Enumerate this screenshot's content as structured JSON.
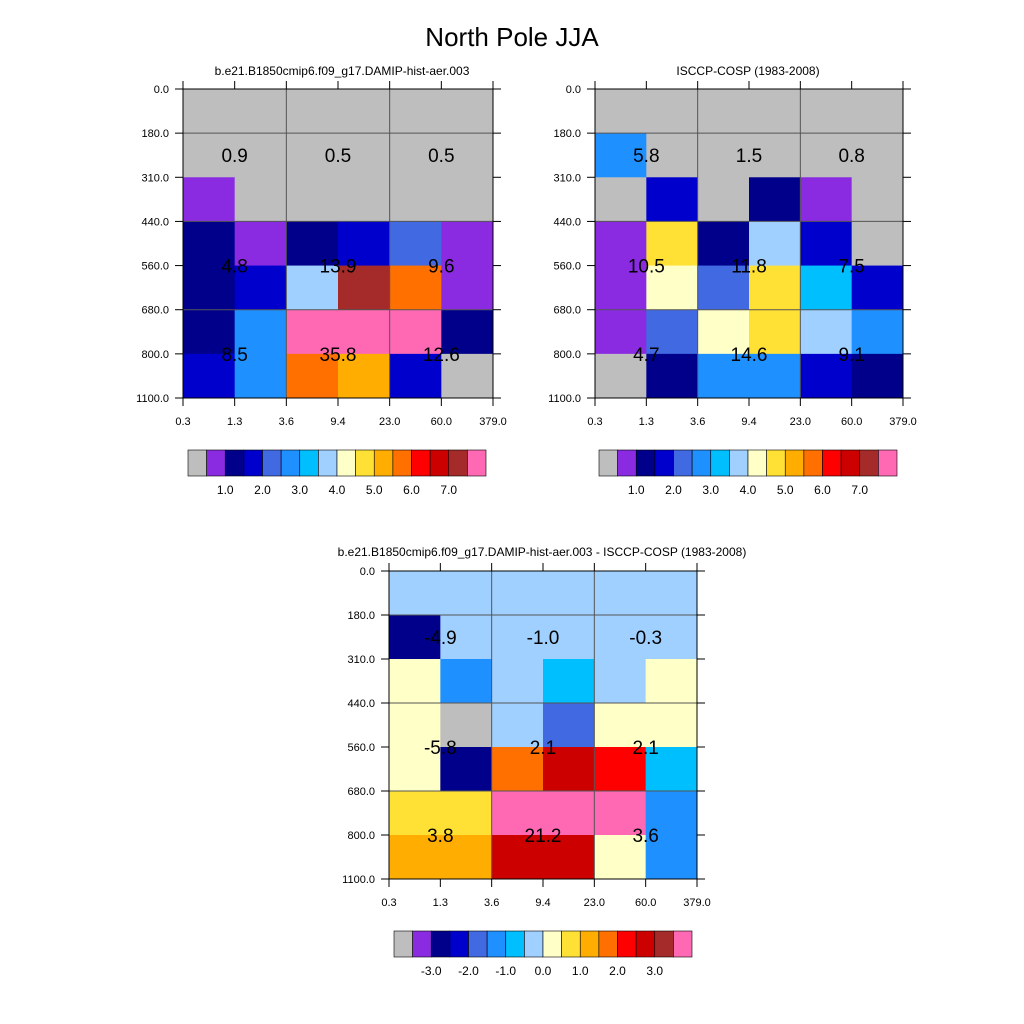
{
  "figure": {
    "title": "North Pole JJA",
    "x_tick_labels": [
      "0.3",
      "1.3",
      "3.6",
      "9.4",
      "23.0",
      "60.0",
      "379.0"
    ],
    "y_tick_labels": [
      "0.0",
      "180.0",
      "310.0",
      "440.0",
      "560.0",
      "680.0",
      "800.0",
      "1100.0"
    ]
  },
  "palette": [
    "#bebebe",
    "#8a2be2",
    "#00008b",
    "#0000cd",
    "#4169e1",
    "#1e90ff",
    "#00bfff",
    "#a0d0ff",
    "#ffffc8",
    "#ffe135",
    "#ffad00",
    "#ff7000",
    "#ff0000",
    "#cd0000",
    "#a52a2a",
    "#ff69b4"
  ],
  "chart_data": [
    {
      "type": "heatmap",
      "title": "b.e21.B1850cmip6.f09_g17.DAMIP-hist-aer.003",
      "x_bins": [
        "0.3",
        "1.3",
        "3.6",
        "9.4",
        "23.0",
        "60.0",
        "379.0"
      ],
      "y_bins": [
        "0.0",
        "180.0",
        "310.0",
        "440.0",
        "560.0",
        "680.0",
        "800.0",
        "1100.0"
      ],
      "cell_color_index": [
        [
          0,
          0,
          0,
          0,
          0,
          0
        ],
        [
          0,
          0,
          0,
          0,
          0,
          0
        ],
        [
          1,
          0,
          0,
          0,
          0,
          0
        ],
        [
          2,
          1,
          2,
          3,
          4,
          1
        ],
        [
          2,
          3,
          7,
          14,
          11,
          1
        ],
        [
          2,
          5,
          15,
          15,
          15,
          2
        ],
        [
          3,
          5,
          11,
          10,
          3,
          0
        ]
      ],
      "group_labels": [
        "0.9",
        "0.5",
        "0.5",
        "4.8",
        "13.9",
        "9.6",
        "8.5",
        "35.8",
        "12.6"
      ],
      "colorbar": {
        "labels": [
          "1.0",
          "2.0",
          "3.0",
          "4.0",
          "5.0",
          "6.0",
          "7.0"
        ]
      }
    },
    {
      "type": "heatmap",
      "title": "ISCCP-COSP (1983-2008)",
      "x_bins": [
        "0.3",
        "1.3",
        "3.6",
        "9.4",
        "23.0",
        "60.0",
        "379.0"
      ],
      "y_bins": [
        "0.0",
        "180.0",
        "310.0",
        "440.0",
        "560.0",
        "680.0",
        "800.0",
        "1100.0"
      ],
      "cell_color_index": [
        [
          0,
          0,
          0,
          0,
          0,
          0
        ],
        [
          5,
          0,
          0,
          0,
          0,
          0
        ],
        [
          0,
          3,
          0,
          2,
          1,
          0
        ],
        [
          1,
          9,
          2,
          7,
          3,
          0
        ],
        [
          1,
          8,
          4,
          9,
          6,
          3
        ],
        [
          1,
          4,
          8,
          9,
          7,
          5
        ],
        [
          0,
          2,
          5,
          5,
          3,
          2
        ]
      ],
      "group_labels": [
        "5.8",
        "1.5",
        "0.8",
        "10.5",
        "11.8",
        "7.5",
        "4.7",
        "14.6",
        "9.1"
      ],
      "colorbar": {
        "labels": [
          "1.0",
          "2.0",
          "3.0",
          "4.0",
          "5.0",
          "6.0",
          "7.0"
        ]
      }
    },
    {
      "type": "heatmap",
      "title": "b.e21.B1850cmip6.f09_g17.DAMIP-hist-aer.003 - ISCCP-COSP (1983-2008)",
      "x_bins": [
        "0.3",
        "1.3",
        "3.6",
        "9.4",
        "23.0",
        "60.0",
        "379.0"
      ],
      "y_bins": [
        "0.0",
        "180.0",
        "310.0",
        "440.0",
        "560.0",
        "680.0",
        "800.0",
        "1100.0"
      ],
      "cell_color_index": [
        [
          7,
          7,
          7,
          7,
          7,
          7
        ],
        [
          2,
          7,
          7,
          7,
          7,
          7
        ],
        [
          8,
          5,
          7,
          6,
          7,
          8
        ],
        [
          8,
          0,
          7,
          4,
          8,
          8
        ],
        [
          8,
          2,
          11,
          13,
          12,
          6
        ],
        [
          9,
          9,
          15,
          15,
          15,
          5
        ],
        [
          10,
          10,
          13,
          13,
          8,
          5
        ]
      ],
      "group_labels": [
        "-4.9",
        "-1.0",
        "-0.3",
        "-5.8",
        "2.1",
        "2.1",
        "3.8",
        "21.2",
        "3.6"
      ],
      "colorbar": {
        "labels": [
          "-3.0",
          "-2.0",
          "-1.0",
          "0.0",
          "1.0",
          "2.0",
          "3.0"
        ]
      }
    }
  ]
}
